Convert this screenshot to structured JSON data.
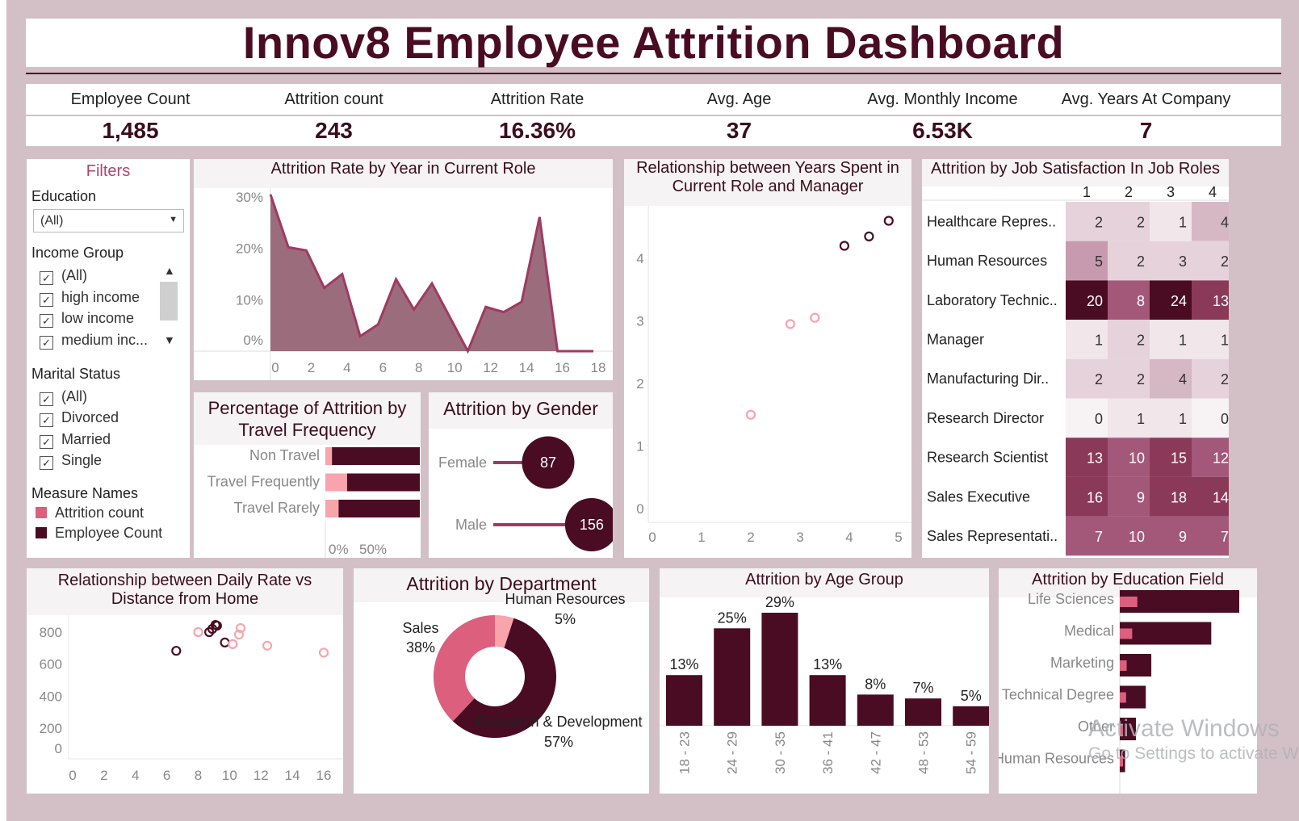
{
  "title": "Innov8 Employee Attrition Dashboard",
  "kpis": [
    {
      "label": "Employee Count",
      "value": "1,485"
    },
    {
      "label": "Attrition count",
      "value": "243"
    },
    {
      "label": "Attrition Rate",
      "value": "16.36%"
    },
    {
      "label": "Avg. Age",
      "value": "37"
    },
    {
      "label": "Avg. Monthly Income",
      "value": "6.53K"
    },
    {
      "label": "Avg. Years At Company",
      "value": "7"
    }
  ],
  "colors": {
    "dark": "#4a0c22",
    "pink": "#dc5f7e",
    "light_pink": "#f7a4ad",
    "area": "#9b6d7c",
    "line": "#a03a62",
    "frame": "#d3c0c6"
  },
  "filters": {
    "title": "Filters",
    "education_label": "Education",
    "education_value": "(All)",
    "income_label": "Income Group",
    "income_items": [
      "(All)",
      "high income",
      "low income",
      "medium inc..."
    ],
    "marital_label": "Marital Status",
    "marital_items": [
      "(All)",
      "Divorced",
      "Married",
      "Single"
    ],
    "measure_label": "Measure Names",
    "measures": [
      {
        "name": "Attrition count",
        "color": "#dc5f7e"
      },
      {
        "name": "Employee Count",
        "color": "#4a0c22"
      }
    ]
  },
  "watermark": {
    "line1": "Activate Windows",
    "line2": "Go to Settings to activate W"
  },
  "chart_data": [
    {
      "id": "year_in_role",
      "type": "area",
      "title": "Attrition Rate by Year in Current Role",
      "x": [
        0,
        1,
        2,
        3,
        4,
        5,
        6,
        7,
        8,
        9,
        10,
        11,
        12,
        13,
        14,
        15,
        16,
        17,
        18
      ],
      "values": [
        30.5,
        20.2,
        19.6,
        12.3,
        15.0,
        2.9,
        5.2,
        14.0,
        8.1,
        13.2,
        6.6,
        0,
        8.6,
        7.6,
        9.6,
        26.1,
        0,
        0,
        0
      ],
      "ylim": [
        0,
        30
      ],
      "yticks": [
        "0%",
        "10%",
        "20%",
        "30%"
      ],
      "xticks": [
        0,
        2,
        4,
        6,
        8,
        10,
        12,
        14,
        16,
        18
      ]
    },
    {
      "id": "role_manager",
      "type": "scatter",
      "title": "Relationship between Years Spent in Current Role and Manager",
      "points": [
        {
          "x": 2.0,
          "y": 1.5,
          "series": "Attrition count"
        },
        {
          "x": 2.8,
          "y": 2.95,
          "series": "Attrition count"
        },
        {
          "x": 3.3,
          "y": 3.05,
          "series": "Attrition count"
        },
        {
          "x": 3.9,
          "y": 4.2,
          "series": "Employee Count"
        },
        {
          "x": 4.4,
          "y": 4.35,
          "series": "Employee Count"
        },
        {
          "x": 4.8,
          "y": 4.6,
          "series": "Employee Count"
        }
      ],
      "xticks": [
        0,
        1,
        2,
        3,
        4,
        5
      ],
      "yticks": [
        0,
        1,
        2,
        3,
        4
      ]
    },
    {
      "id": "job_satisfaction",
      "type": "heatmap",
      "title": "Attrition by Job Satisfaction In Job Roles",
      "columns": [
        "1",
        "2",
        "3",
        "4"
      ],
      "rows": [
        {
          "role": "Healthcare Repres..",
          "values": [
            2,
            2,
            1,
            4
          ]
        },
        {
          "role": "Human Resources",
          "values": [
            5,
            2,
            3,
            2
          ]
        },
        {
          "role": "Laboratory Technic..",
          "values": [
            20,
            8,
            24,
            13
          ]
        },
        {
          "role": "Manager",
          "values": [
            1,
            2,
            1,
            1
          ]
        },
        {
          "role": "Manufacturing Dir..",
          "values": [
            2,
            2,
            4,
            2
          ]
        },
        {
          "role": "Research Director",
          "values": [
            0,
            1,
            1,
            0
          ]
        },
        {
          "role": "Research Scientist",
          "values": [
            13,
            10,
            15,
            12
          ]
        },
        {
          "role": "Sales Executive",
          "values": [
            16,
            9,
            18,
            14
          ]
        },
        {
          "role": "Sales Representati..",
          "values": [
            7,
            10,
            9,
            7
          ]
        }
      ]
    },
    {
      "id": "travel",
      "type": "bar",
      "title": "Percentage of Attrition by Travel Frequency",
      "categories": [
        "Non Travel",
        "Travel Frequently",
        "Travel Rarely"
      ],
      "series": [
        {
          "name": "Attrition count",
          "values": [
            7,
            23,
            14
          ]
        },
        {
          "name": "Employee Count",
          "values": [
            93,
            77,
            86
          ]
        }
      ],
      "xticks": [
        "0%",
        "50%"
      ]
    },
    {
      "id": "gender",
      "type": "bar",
      "title": "Attrition by Gender",
      "categories": [
        "Female",
        "Male"
      ],
      "values": [
        87,
        156
      ]
    },
    {
      "id": "daily_rate",
      "type": "scatter",
      "title": "Relationship between Daily Rate vs Distance from Home",
      "points": [
        {
          "x": 6.6,
          "y": 683,
          "series": "Employee Count"
        },
        {
          "x": 8.0,
          "y": 800,
          "series": "Attrition count"
        },
        {
          "x": 8.7,
          "y": 800,
          "series": "Employee Count"
        },
        {
          "x": 8.9,
          "y": 820,
          "series": "Employee Count"
        },
        {
          "x": 9.1,
          "y": 845,
          "series": "Employee Count"
        },
        {
          "x": 9.2,
          "y": 840,
          "series": "Employee Count"
        },
        {
          "x": 9.7,
          "y": 735,
          "series": "Employee Count"
        },
        {
          "x": 10.2,
          "y": 725,
          "series": "Attrition count"
        },
        {
          "x": 10.6,
          "y": 785,
          "series": "Attrition count"
        },
        {
          "x": 10.7,
          "y": 825,
          "series": "Attrition count"
        },
        {
          "x": 12.4,
          "y": 715,
          "series": "Attrition count"
        },
        {
          "x": 16.0,
          "y": 672,
          "series": "Attrition count"
        }
      ],
      "xticks": [
        0,
        2,
        4,
        6,
        8,
        10,
        12,
        14,
        16
      ],
      "yticks": [
        0,
        200,
        400,
        600,
        800
      ]
    },
    {
      "id": "department",
      "type": "pie",
      "title": "Attrition by Department",
      "slices": [
        {
          "label": "Human Resources",
          "pct": "5%",
          "value": 5,
          "color": "#f7a4ad"
        },
        {
          "label": "Research & Development",
          "pct": "57%",
          "value": 57,
          "color": "#4a0c22"
        },
        {
          "label": "Sales",
          "pct": "38%",
          "value": 38,
          "color": "#dc5f7e"
        }
      ]
    },
    {
      "id": "age_group",
      "type": "bar",
      "title": "Attrition by Age Group",
      "categories": [
        "18 - 23",
        "24 - 29",
        "30 - 35",
        "36 - 41",
        "42 - 47",
        "48 - 53",
        "54 - 59"
      ],
      "values": [
        13,
        25,
        29,
        13,
        8,
        7,
        5
      ],
      "labels": [
        "13%",
        "25%",
        "29%",
        "13%",
        "8%",
        "7%",
        "5%"
      ]
    },
    {
      "id": "education_field",
      "type": "bar",
      "title": "Attrition by Education Field",
      "categories": [
        "Life Sciences",
        "Medical",
        "Marketing",
        "Technical Degree",
        "Other",
        "Human Resources"
      ],
      "series": [
        {
          "name": "Employee Count",
          "values": [
            606,
            464,
            160,
            132,
            82,
            27
          ]
        },
        {
          "name": "Attrition count",
          "values": [
            89,
            63,
            35,
            32,
            11,
            7
          ]
        }
      ]
    }
  ]
}
